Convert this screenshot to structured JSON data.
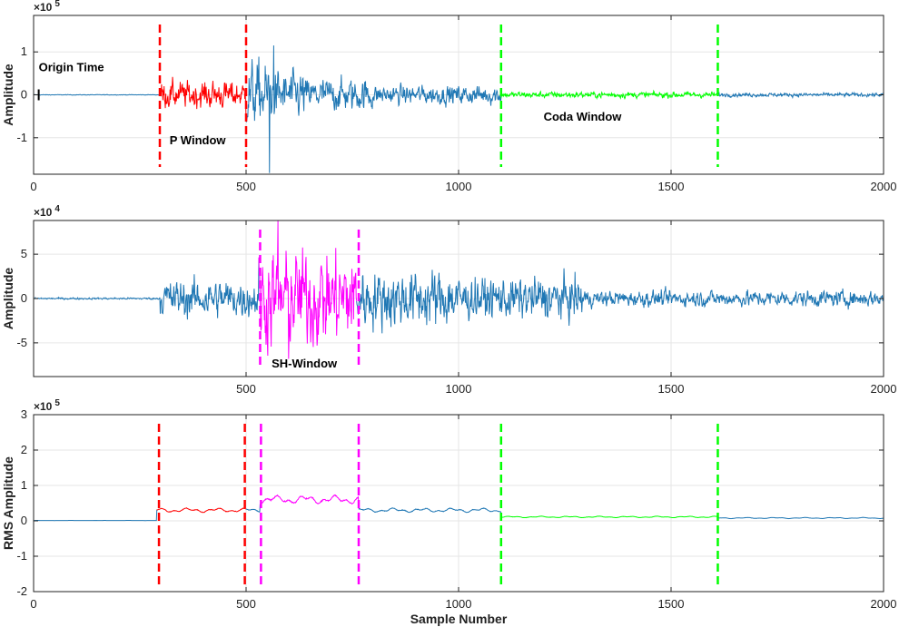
{
  "chart_data": [
    {
      "type": "line",
      "ylabel": "Amplitude",
      "xlabel": "",
      "exponent_label": "×10",
      "exponent_power": "5",
      "xlim": [
        0,
        2000
      ],
      "ylim": [
        -1.85,
        1.85
      ],
      "xticks": [
        0,
        500,
        1000,
        1500,
        2000
      ],
      "yticks": [
        -1,
        0,
        1
      ],
      "grid": true,
      "signal": {
        "pre_noise": 0.008,
        "onset": 300,
        "segments": [
          [
            300,
            500,
            0.35
          ],
          [
            500,
            560,
            0.85
          ],
          [
            560,
            640,
            0.6
          ],
          [
            640,
            800,
            0.42
          ],
          [
            800,
            1100,
            0.25
          ],
          [
            1100,
            1610,
            0.08
          ],
          [
            1610,
            2000,
            0.05
          ]
        ],
        "spikes": [
          [
            555,
            -1.82
          ],
          [
            565,
            1.15
          ]
        ]
      },
      "highlights": [
        {
          "from": 300,
          "to": 500,
          "color": "#ff0000"
        },
        {
          "from": 1100,
          "to": 1610,
          "color": "#00ff00"
        }
      ],
      "windows": [
        {
          "x": 297,
          "color": "#ff0000"
        },
        {
          "x": 500,
          "color": "#ff0000"
        },
        {
          "x": 1100,
          "color": "#00ff00"
        },
        {
          "x": 1610,
          "color": "#00ff00"
        }
      ],
      "annotations": [
        {
          "text": "Origin Time",
          "x": 12,
          "y": 0.55
        },
        {
          "text": "P Window",
          "x": 320,
          "y": -1.15
        },
        {
          "text": "Coda Window",
          "x": 1200,
          "y": -0.6
        }
      ],
      "origin_marker": {
        "x": 12
      }
    },
    {
      "type": "line",
      "ylabel": "Amplitude",
      "xlabel": "",
      "exponent_label": "×10",
      "exponent_power": "4",
      "xlim": [
        0,
        2000
      ],
      "ylim": [
        -8.8,
        8.8
      ],
      "xticks": [
        500,
        1000,
        1500,
        2000
      ],
      "yticks": [
        -5,
        0,
        5
      ],
      "grid": true,
      "signal": {
        "pre_noise": 0.12,
        "onset": 297,
        "segments": [
          [
            297,
            530,
            2.4
          ],
          [
            530,
            760,
            6.0
          ],
          [
            760,
            1000,
            3.6
          ],
          [
            1000,
            1300,
            2.6
          ],
          [
            1300,
            2000,
            1.0
          ]
        ],
        "spikes": [
          [
            575,
            8.8
          ],
          [
            600,
            -6.8
          ]
        ]
      },
      "highlights": [
        {
          "from": 530,
          "to": 760,
          "color": "#ff00ff"
        }
      ],
      "windows": [
        {
          "x": 533,
          "color": "#ff00ff"
        },
        {
          "x": 765,
          "color": "#ff00ff"
        }
      ],
      "annotations": [
        {
          "text": "SH-Window",
          "x": 560,
          "y": -7.8
        }
      ]
    },
    {
      "type": "line",
      "ylabel": "RMS Amplitude",
      "xlabel": "Sample Number",
      "exponent_label": "×10",
      "exponent_power": "5",
      "xlim": [
        0,
        2000
      ],
      "ylim": [
        -2,
        3
      ],
      "xticks": [
        0,
        500,
        1000,
        1500,
        2000
      ],
      "yticks": [
        -2,
        -1,
        0,
        1,
        2,
        3
      ],
      "grid": true,
      "rms_levels": [
        [
          0,
          290,
          0.01
        ],
        [
          290,
          500,
          0.3
        ],
        [
          500,
          533,
          0.3
        ],
        [
          533,
          765,
          0.6
        ],
        [
          765,
          1100,
          0.3
        ],
        [
          1100,
          1610,
          0.11
        ],
        [
          1610,
          2000,
          0.08
        ]
      ],
      "highlights": [
        {
          "from": 290,
          "to": 500,
          "color": "#ff0000"
        },
        {
          "from": 533,
          "to": 765,
          "color": "#ff00ff"
        },
        {
          "from": 1100,
          "to": 1610,
          "color": "#00ff00"
        }
      ],
      "windows": [
        {
          "x": 295,
          "color": "#ff0000"
        },
        {
          "x": 497,
          "color": "#ff0000"
        },
        {
          "x": 535,
          "color": "#ff00ff"
        },
        {
          "x": 765,
          "color": "#ff00ff"
        },
        {
          "x": 1100,
          "color": "#00ff00"
        },
        {
          "x": 1610,
          "color": "#00ff00"
        }
      ]
    }
  ],
  "colors": {
    "trace": "#1f77b4",
    "axis": "#222222",
    "grid": "#e6e6e6"
  }
}
